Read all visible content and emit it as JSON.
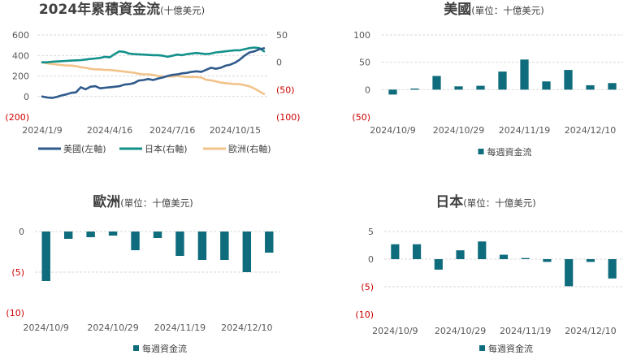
{
  "colors": {
    "us": "#2f5a8c",
    "japan": "#12918a",
    "europe": "#f2c38b",
    "bar": "#0f6c7c",
    "negative_label": "#cc0000"
  },
  "chart_data": [
    {
      "id": "cumulative",
      "type": "line",
      "title": "2024年累積資金流",
      "subtitle": "(十億美元)",
      "x_ticks": [
        "2024/1/9",
        "2024/4/16",
        "2024/7/16",
        "2024/10/15"
      ],
      "x_tick_index": [
        0,
        14,
        27,
        40
      ],
      "y_left": {
        "ticks": [
          "600",
          "400",
          "200",
          "0",
          "(200)"
        ],
        "values": [
          600,
          400,
          200,
          0,
          -200
        ],
        "lim": [
          -200,
          600
        ]
      },
      "y_right": {
        "ticks": [
          "50",
          "0",
          "(50)",
          "(100)"
        ],
        "values": [
          50,
          0,
          -50,
          -100
        ],
        "lim": [
          -100,
          50
        ]
      },
      "legend": [
        "美國(左軸)",
        "日本(右軸)",
        "歐洲(右軸)"
      ],
      "series": [
        {
          "name": "美國(左軸)",
          "axis": "left",
          "color_key": "us",
          "values": [
            0,
            -10,
            -15,
            -5,
            10,
            20,
            35,
            40,
            90,
            70,
            95,
            100,
            80,
            85,
            90,
            95,
            100,
            115,
            120,
            130,
            155,
            160,
            170,
            160,
            175,
            185,
            200,
            210,
            215,
            225,
            230,
            240,
            245,
            240,
            260,
            280,
            270,
            280,
            300,
            310,
            330,
            360,
            400,
            430,
            440,
            460,
            470
          ]
        },
        {
          "name": "日本(右軸)",
          "axis": "right",
          "color_key": "japan",
          "values": [
            0,
            0,
            1,
            1.5,
            2,
            2.5,
            3,
            3.5,
            4,
            5,
            6,
            7,
            8,
            10,
            9,
            15,
            20,
            19,
            16,
            15,
            14.5,
            14,
            13.5,
            13,
            13,
            12,
            10,
            12,
            14,
            13,
            15,
            16,
            17,
            16,
            15,
            16,
            18,
            19,
            20,
            21,
            22,
            22,
            24,
            26,
            27,
            26,
            20
          ]
        },
        {
          "name": "歐洲(右軸)",
          "axis": "right",
          "color_key": "europe",
          "values": [
            0,
            -2,
            -3,
            -4,
            -5,
            -6,
            -6,
            -7,
            -9,
            -10,
            -12,
            -13,
            -13,
            -14,
            -14,
            -15,
            -16,
            -17,
            -18,
            -19,
            -21,
            -22,
            -22,
            -23,
            -25,
            -26,
            -26,
            -26,
            -25,
            -26,
            -27,
            -27,
            -27,
            -28,
            -32,
            -33,
            -35,
            -37,
            -38,
            -39,
            -40,
            -40,
            -42,
            -44,
            -48,
            -53,
            -58
          ]
        }
      ]
    },
    {
      "id": "us",
      "type": "bar",
      "title": "美國",
      "subtitle": "(單位：十億美元)",
      "x_ticks": [
        "2024/10/9",
        "2024/10/29",
        "2024/11/19",
        "2024/12/10"
      ],
      "x_tick_index": [
        0,
        3,
        6,
        9
      ],
      "y": {
        "ticks": [
          "100",
          "50",
          "0",
          "(50)"
        ],
        "values": [
          100,
          50,
          0,
          -50
        ],
        "lim": [
          -50,
          100
        ]
      },
      "legend": [
        "每週資金流"
      ],
      "values": [
        -9,
        2,
        25,
        6,
        7,
        33,
        55,
        15,
        36,
        8,
        12
      ]
    },
    {
      "id": "europe",
      "type": "bar",
      "title": "歐洲",
      "subtitle": "(單位：十億美元)",
      "x_ticks": [
        "2024/10/9",
        "2024/10/29",
        "2024/11/19",
        "2024/12/10"
      ],
      "x_tick_index": [
        0,
        3,
        6,
        9
      ],
      "y": {
        "ticks": [
          "0",
          "(5)",
          "(10)"
        ],
        "values": [
          0,
          -5,
          -10
        ],
        "lim": [
          -10,
          0
        ]
      },
      "legend": [
        "每週資金流"
      ],
      "values": [
        -6.1,
        -0.9,
        -0.7,
        -0.5,
        -2.3,
        -0.8,
        -3.0,
        -3.5,
        -3.5,
        -5.0,
        -2.6
      ]
    },
    {
      "id": "japan",
      "type": "bar",
      "title": "日本",
      "subtitle": "(單位：十億美元)",
      "x_ticks": [
        "2024/10/9",
        "2024/10/29",
        "2024/11/19",
        "2024/12/10"
      ],
      "x_tick_index": [
        0,
        3,
        6,
        9
      ],
      "y": {
        "ticks": [
          "5",
          "0",
          "(5)",
          "(10)"
        ],
        "values": [
          5,
          0,
          -5,
          -10
        ],
        "lim": [
          -10,
          5
        ]
      },
      "legend": [
        "每週資金流"
      ],
      "values": [
        2.7,
        2.7,
        -1.9,
        1.6,
        3.2,
        0.8,
        0.2,
        -0.5,
        -4.9,
        -0.5,
        -3.5
      ]
    }
  ]
}
